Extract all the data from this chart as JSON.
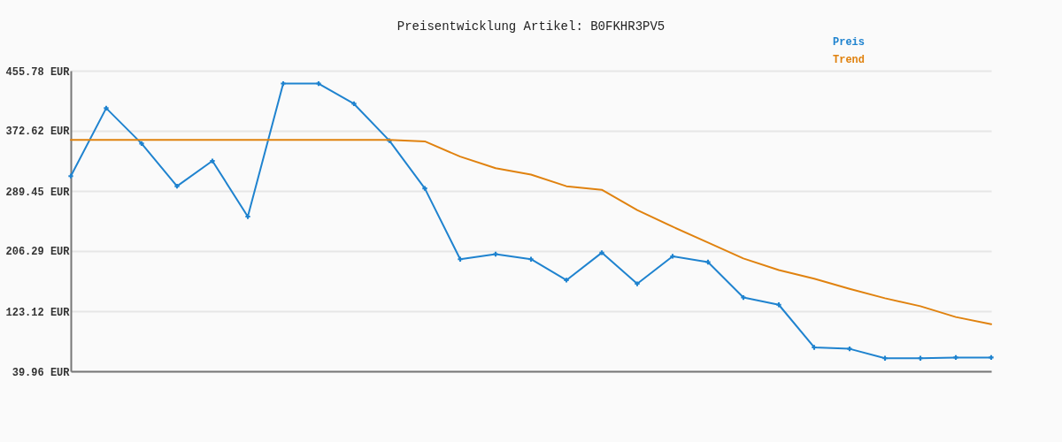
{
  "chart_data": {
    "type": "line",
    "title": "Preisentwicklung Artikel: B0FKHR3PV5",
    "categories": [
      null,
      null,
      null,
      null,
      null,
      null,
      null,
      null,
      null,
      null,
      null,
      null,
      null,
      null,
      null,
      null,
      null,
      null,
      null,
      null,
      null,
      null,
      null,
      null,
      null,
      null,
      null
    ],
    "series": [
      {
        "name": "Preis",
        "color": "#1f83cf",
        "marker": "cross",
        "values": [
          310,
          404,
          355,
          296,
          331,
          254,
          438,
          438,
          410,
          359,
          293,
          195,
          202,
          195,
          166,
          204,
          161,
          199,
          191,
          142,
          132,
          73,
          71,
          58,
          58,
          59,
          59
        ]
      },
      {
        "name": "Trend",
        "color": "#e0820f",
        "values": [
          360,
          360,
          360,
          360,
          360,
          360,
          360,
          360,
          360,
          360,
          358,
          337,
          321,
          312,
          296,
          291,
          263,
          240,
          218,
          196,
          180,
          168,
          154,
          141,
          130,
          115,
          105
        ]
      }
    ],
    "ylim": [
      39.96,
      455.78
    ],
    "yticks": [
      {
        "value": 39.96,
        "label": "39.96 EUR"
      },
      {
        "value": 123.12,
        "label": "123.12 EUR"
      },
      {
        "value": 206.29,
        "label": "206.29 EUR"
      },
      {
        "value": 289.45,
        "label": "289.45 EUR"
      },
      {
        "value": 372.62,
        "label": "372.62 EUR"
      },
      {
        "value": 455.78,
        "label": "455.78 EUR"
      }
    ],
    "grid": "y",
    "legend": "top right",
    "tick_labels": "y"
  }
}
